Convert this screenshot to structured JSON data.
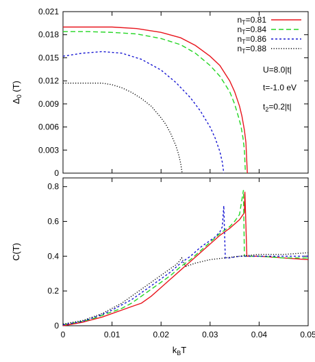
{
  "chart_data": [
    {
      "type": "line",
      "title": "",
      "xlabel": "",
      "ylabel": "Δ0 (T)",
      "ylabel_main": "Δ",
      "ylabel_sub": "0",
      "ylabel_rest": " (T)",
      "xlim": [
        0,
        0.05
      ],
      "ylim": [
        0,
        0.021
      ],
      "x_ticks": [
        0,
        0.01,
        0.02,
        0.03,
        0.04,
        0.05
      ],
      "y_ticks": [
        "0",
        "0.003",
        "0.006",
        "0.009",
        "0.012",
        "0.015",
        "0.018",
        "0.021"
      ],
      "y_tick_values": [
        0,
        0.003,
        0.006,
        0.009,
        0.012,
        0.015,
        0.018,
        0.021
      ],
      "legend_position": "top-right",
      "annotations": [
        {
          "main": "U=8.0|t|",
          "sub": "",
          "rest": ""
        },
        {
          "main": "t=-1.0 eV",
          "sub": "",
          "rest": ""
        },
        {
          "main": "t",
          "sub": "2",
          "rest": "=0.2|t|"
        }
      ],
      "series": [
        {
          "name": "nT=0.81",
          "label_main": "n",
          "label_sub": "T",
          "label_rest": "=0.81",
          "color": "#e8141c",
          "dash": "",
          "x": [
            0,
            0.005,
            0.01,
            0.015,
            0.02,
            0.024,
            0.027,
            0.03,
            0.032,
            0.034,
            0.035,
            0.036,
            0.0365,
            0.037,
            0.0373,
            0.0376
          ],
          "y": [
            0.019,
            0.019,
            0.019,
            0.0188,
            0.0183,
            0.0176,
            0.0166,
            0.0152,
            0.014,
            0.012,
            0.0106,
            0.0087,
            0.0074,
            0.0056,
            0.004,
            0
          ]
        },
        {
          "name": "nT=0.84",
          "label_main": "n",
          "label_sub": "T",
          "label_rest": "=0.84",
          "color": "#22d622",
          "dash": "7,4",
          "x": [
            0,
            0.005,
            0.01,
            0.015,
            0.02,
            0.024,
            0.027,
            0.03,
            0.032,
            0.034,
            0.035,
            0.0358,
            0.0363,
            0.0367,
            0.037,
            0.0372
          ],
          "y": [
            0.0184,
            0.0184,
            0.0183,
            0.0181,
            0.0175,
            0.0167,
            0.0156,
            0.014,
            0.0126,
            0.0106,
            0.009,
            0.0073,
            0.0061,
            0.0046,
            0.003,
            0
          ]
        },
        {
          "name": "nT=0.86",
          "label_main": "n",
          "label_sub": "T",
          "label_rest": "=0.86",
          "color": "#1414d2",
          "dash": "3,3",
          "x": [
            0,
            0.004,
            0.008,
            0.012,
            0.016,
            0.02,
            0.023,
            0.026,
            0.028,
            0.03,
            0.031,
            0.032,
            0.0325,
            0.0328
          ],
          "y": [
            0.0152,
            0.0156,
            0.0158,
            0.0156,
            0.0148,
            0.0134,
            0.0118,
            0.0098,
            0.0081,
            0.006,
            0.0046,
            0.0028,
            0.0014,
            0
          ]
        },
        {
          "name": "nT=0.88",
          "label_main": "n",
          "label_sub": "T",
          "label_rest": "=0.88",
          "color": "#000000",
          "dash": "1.2,2.4",
          "x": [
            0,
            0.004,
            0.008,
            0.01,
            0.012,
            0.014,
            0.016,
            0.018,
            0.02,
            0.021,
            0.022,
            0.023,
            0.0235,
            0.024,
            0.0243
          ],
          "y": [
            0.0117,
            0.0117,
            0.0117,
            0.0115,
            0.0111,
            0.0105,
            0.0097,
            0.0087,
            0.0072,
            0.0063,
            0.0051,
            0.0036,
            0.0026,
            0.0013,
            0
          ]
        }
      ]
    },
    {
      "type": "line",
      "title": "",
      "xlabel": "kBT",
      "xlabel_main": "k",
      "xlabel_sub": "B",
      "xlabel_rest": "T",
      "ylabel": "C(T)",
      "xlim": [
        0,
        0.05
      ],
      "ylim": [
        0,
        0.85
      ],
      "x_ticks": [
        "0",
        "0.01",
        "0.02",
        "0.03",
        "0.04",
        "0.05"
      ],
      "x_tick_values": [
        0,
        0.01,
        0.02,
        0.03,
        0.04,
        0.05
      ],
      "y_ticks": [
        "0",
        "0.2",
        "0.4",
        "0.6",
        "0.8"
      ],
      "y_tick_values": [
        0,
        0.2,
        0.4,
        0.6,
        0.8
      ],
      "series": [
        {
          "name": "nT=0.81",
          "color": "#e8141c",
          "dash": "",
          "x": [
            0,
            0.002,
            0.004,
            0.006,
            0.008,
            0.01,
            0.012,
            0.014,
            0.016,
            0.018,
            0.02,
            0.022,
            0.024,
            0.026,
            0.028,
            0.03,
            0.032,
            0.034,
            0.036,
            0.037,
            0.0371,
            0.0375,
            0.038,
            0.04,
            0.045,
            0.05
          ],
          "y": [
            0.0,
            0.01,
            0.02,
            0.035,
            0.05,
            0.07,
            0.09,
            0.11,
            0.13,
            0.17,
            0.22,
            0.27,
            0.32,
            0.37,
            0.42,
            0.47,
            0.52,
            0.56,
            0.61,
            0.65,
            0.77,
            0.4,
            0.4,
            0.4,
            0.39,
            0.38
          ]
        },
        {
          "name": "nT=0.84",
          "color": "#22d622",
          "dash": "7,4",
          "x": [
            0,
            0.002,
            0.004,
            0.006,
            0.008,
            0.01,
            0.012,
            0.014,
            0.016,
            0.018,
            0.02,
            0.022,
            0.024,
            0.026,
            0.028,
            0.03,
            0.032,
            0.034,
            0.035,
            0.036,
            0.0368,
            0.037,
            0.0375,
            0.04,
            0.045,
            0.05
          ],
          "y": [
            0.005,
            0.015,
            0.025,
            0.04,
            0.06,
            0.08,
            0.1,
            0.13,
            0.17,
            0.21,
            0.25,
            0.29,
            0.34,
            0.38,
            0.43,
            0.48,
            0.53,
            0.57,
            0.6,
            0.64,
            0.78,
            0.4,
            0.4,
            0.4,
            0.39,
            0.39
          ]
        },
        {
          "name": "nT=0.86",
          "color": "#1414d2",
          "dash": "3,3",
          "x": [
            0,
            0.002,
            0.004,
            0.006,
            0.008,
            0.01,
            0.012,
            0.014,
            0.016,
            0.018,
            0.02,
            0.022,
            0.024,
            0.026,
            0.028,
            0.03,
            0.031,
            0.032,
            0.0325,
            0.0328,
            0.0331,
            0.034,
            0.036,
            0.04,
            0.045,
            0.05
          ],
          "y": [
            0.005,
            0.015,
            0.025,
            0.045,
            0.065,
            0.09,
            0.12,
            0.15,
            0.19,
            0.23,
            0.27,
            0.31,
            0.36,
            0.4,
            0.45,
            0.49,
            0.51,
            0.54,
            0.57,
            0.69,
            0.39,
            0.39,
            0.4,
            0.4,
            0.4,
            0.4
          ]
        },
        {
          "name": "nT=0.88",
          "color": "#000000",
          "dash": "1.2,2.4",
          "x": [
            0,
            0.002,
            0.004,
            0.006,
            0.008,
            0.01,
            0.012,
            0.014,
            0.016,
            0.018,
            0.02,
            0.022,
            0.023,
            0.0237,
            0.0242,
            0.025,
            0.027,
            0.03,
            0.033,
            0.036,
            0.04,
            0.045,
            0.05
          ],
          "y": [
            0.01,
            0.02,
            0.03,
            0.05,
            0.07,
            0.1,
            0.13,
            0.17,
            0.21,
            0.25,
            0.29,
            0.33,
            0.35,
            0.37,
            0.39,
            0.34,
            0.36,
            0.38,
            0.39,
            0.4,
            0.41,
            0.41,
            0.42
          ]
        }
      ]
    }
  ]
}
